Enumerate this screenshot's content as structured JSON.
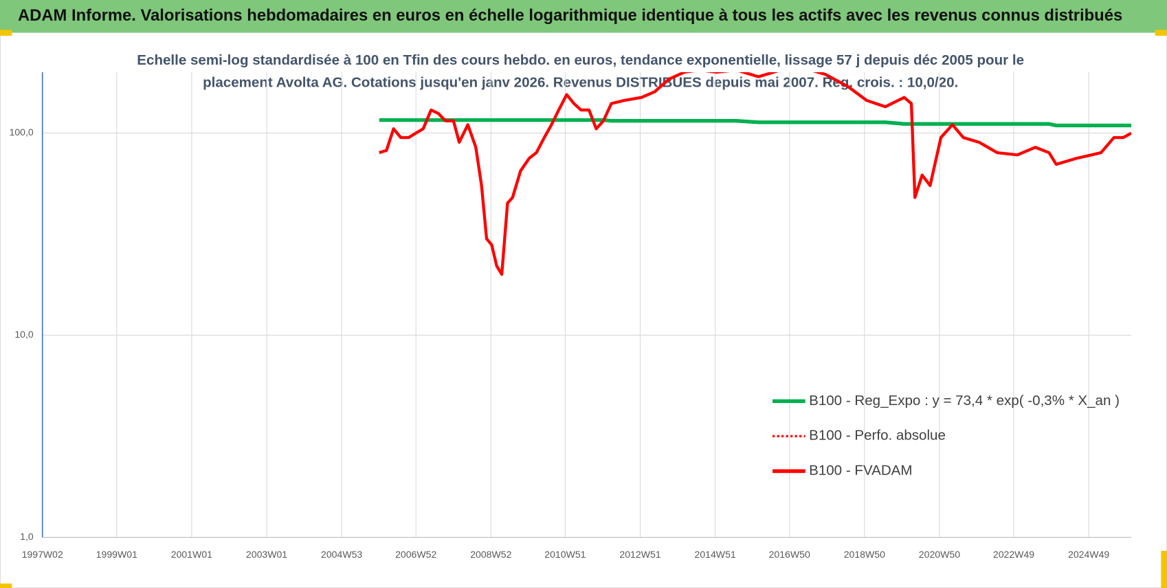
{
  "chart_data": {
    "type": "line",
    "header": "ADAM Informe. Valorisations hebdomadaires en euros en échelle logarithmique identique à tous les actifs avec les revenus connus distribués",
    "subtitle": [
      "Echelle semi-log standardisée à 100 en Tfin des cours hebdo. en euros, tendance exponentielle, lissage 57 j depuis déc 2005 pour le",
      "placement Avolta AG. Cotations jusqu'en janv 2026. Revenus DISTRIBUES depuis mai 2007. Reg. crois. : 10,0/20."
    ],
    "x": [
      "2006W01",
      "2006W11",
      "2006W21",
      "2006W31",
      "2006W42",
      "2006W52",
      "2007W10",
      "2007W21",
      "2007W31",
      "2007W41",
      "2007W52",
      "2008W08",
      "2008W20",
      "2008W31",
      "2008W39",
      "2008W46",
      "2009W01",
      "2009W08",
      "2009W15",
      "2009W23",
      "2009W30",
      "2009W41",
      "2010W01",
      "2010W11",
      "2010W22",
      "2010W32",
      "2010W42",
      "2011W01",
      "2011W11",
      "2011W21",
      "2011W32",
      "2011W42",
      "2011W52",
      "2012W11",
      "2012W29",
      "2013W01",
      "2013W19",
      "2013W39",
      "2014W08",
      "2014W29",
      "2015W01",
      "2015W28",
      "2016W07",
      "2016W38",
      "2017W17",
      "2017W48",
      "2018W27",
      "2019W01",
      "2019W27",
      "2020W01",
      "2020W11",
      "2020W16",
      "2020W26",
      "2020W37",
      "2020W52",
      "2021W16",
      "2021W31",
      "2022W01",
      "2022W26",
      "2023W02",
      "2023W27",
      "2023W46",
      "2024W04",
      "2024W32",
      "2025W01",
      "2025W14",
      "2025W32",
      "2025W45",
      "2026W04"
    ],
    "series": [
      {
        "name": "B100 - Reg_Expo : y = 73,4 * exp( -0,3% *  X_an )",
        "color": "#00b050",
        "style": "solid",
        "values": [
          116,
          116,
          116,
          116,
          116,
          116,
          116,
          116,
          116,
          116,
          116,
          116,
          116,
          116,
          116,
          116,
          116,
          116,
          116,
          116,
          116,
          116,
          116,
          116,
          116,
          116,
          116,
          116,
          116,
          116,
          116,
          116,
          116,
          115,
          115,
          115,
          115,
          115,
          115,
          115,
          115,
          115,
          113,
          113,
          113,
          113,
          113,
          113,
          113,
          111,
          111,
          111,
          111,
          111,
          111,
          111,
          111,
          111,
          111,
          111,
          111,
          111,
          109,
          109,
          109,
          109,
          109,
          109,
          109
        ]
      },
      {
        "name": "B100 - Perfo. absolue",
        "color": "#ff0000",
        "style": "dotted",
        "values": [
          80,
          82,
          105,
          95,
          95,
          100,
          105,
          130,
          125,
          115,
          115,
          90,
          110,
          85,
          55,
          30,
          28,
          22,
          20,
          45,
          48,
          65,
          75,
          80,
          95,
          110,
          130,
          155,
          140,
          130,
          130,
          105,
          115,
          140,
          145,
          150,
          160,
          185,
          200,
          205,
          200,
          205,
          190,
          205,
          210,
          195,
          170,
          145,
          135,
          150,
          140,
          48,
          62,
          55,
          95,
          110,
          95,
          90,
          80,
          78,
          85,
          80,
          70,
          75,
          78,
          80,
          95,
          95,
          100
        ]
      },
      {
        "name": "B100 - FVADAM",
        "color": "#ff0000",
        "style": "solid",
        "values": [
          80,
          82,
          105,
          95,
          95,
          100,
          105,
          130,
          125,
          115,
          115,
          90,
          110,
          85,
          55,
          30,
          28,
          22,
          20,
          45,
          48,
          65,
          75,
          80,
          95,
          110,
          130,
          155,
          140,
          130,
          130,
          105,
          115,
          140,
          145,
          150,
          160,
          185,
          200,
          205,
          200,
          205,
          190,
          205,
          210,
          195,
          170,
          145,
          135,
          150,
          140,
          48,
          62,
          55,
          95,
          110,
          95,
          90,
          80,
          78,
          85,
          80,
          70,
          75,
          78,
          80,
          95,
          95,
          100
        ]
      }
    ],
    "xlim": [
      "1997W02",
      "2026W04"
    ],
    "xticks": [
      "1997W02",
      "1999W01",
      "2001W01",
      "2003W01",
      "2004W53",
      "2006W52",
      "2008W52",
      "2010W51",
      "2012W51",
      "2014W51",
      "2016W50",
      "2018W50",
      "2020W50",
      "2022W49",
      "2024W49"
    ],
    "ylim": [
      1,
      200
    ],
    "ylog": true,
    "yticks": [
      {
        "value": 1,
        "label": "1,0"
      },
      {
        "value": 10,
        "label": "10,0"
      },
      {
        "value": 100,
        "label": "100,0"
      }
    ],
    "grid": true,
    "legend": "lower right"
  }
}
